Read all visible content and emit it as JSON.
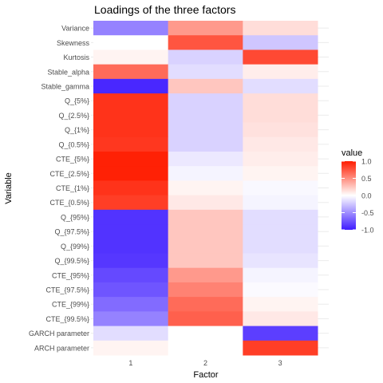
{
  "chart_data": {
    "type": "heatmap",
    "title": "Loadings of the three factors",
    "xlabel": "Factor",
    "ylabel": "Variable",
    "x_categories": [
      "1",
      "2",
      "3"
    ],
    "y_categories": [
      "Variance",
      "Skewness",
      "Kurtosis",
      "Stable_alpha",
      "Stable_gamma",
      "Q_{5%}",
      "Q_{2.5%}",
      "Q_{1%}",
      "Q_{0.5%}",
      "CTE_{5%}",
      "CTE_{2.5%}",
      "CTE_{1%}",
      "CTE_{0.5%}",
      "Q_{95%}",
      "Q_{97.5%}",
      "Q_{99%}",
      "Q_{99.5%}",
      "CTE_{95%}",
      "CTE_{97.5%}",
      "CTE_{99%}",
      "CTE_{99.5%}",
      "GARCH parameter",
      "ARCH parameter"
    ],
    "values": [
      [
        -0.55,
        0.45,
        0.15
      ],
      [
        0.0,
        0.75,
        -0.25
      ],
      [
        0.05,
        -0.2,
        0.8
      ],
      [
        0.65,
        -0.15,
        0.08
      ],
      [
        -0.95,
        0.25,
        -0.15
      ],
      [
        0.9,
        -0.2,
        0.15
      ],
      [
        0.9,
        -0.2,
        0.15
      ],
      [
        0.9,
        -0.2,
        0.13
      ],
      [
        0.88,
        -0.2,
        0.1
      ],
      [
        0.98,
        -0.1,
        0.08
      ],
      [
        0.98,
        -0.05,
        0.05
      ],
      [
        0.9,
        0.05,
        -0.03
      ],
      [
        0.85,
        0.1,
        -0.05
      ],
      [
        -0.9,
        0.25,
        -0.15
      ],
      [
        -0.9,
        0.25,
        -0.15
      ],
      [
        -0.9,
        0.25,
        -0.15
      ],
      [
        -0.88,
        0.25,
        -0.12
      ],
      [
        -0.8,
        0.45,
        -0.05
      ],
      [
        -0.75,
        0.55,
        -0.02
      ],
      [
        -0.65,
        0.65,
        0.05
      ],
      [
        -0.55,
        0.7,
        0.1
      ],
      [
        -0.15,
        0.0,
        -0.85
      ],
      [
        0.05,
        0.0,
        0.85
      ]
    ],
    "legend": {
      "title": "value",
      "position": "right",
      "ticks": [
        "1.0",
        "0.5",
        "0.0",
        "-0.5",
        "-1.0"
      ],
      "tick_values": [
        1.0,
        0.5,
        0.0,
        -0.5,
        -1.0
      ],
      "range": [
        -1.0,
        1.0
      ]
    },
    "colors": {
      "low": "#3f1cff",
      "mid": "#ffffff",
      "high": "#ff1c00",
      "grid": "#ebebeb"
    },
    "grid": true
  }
}
